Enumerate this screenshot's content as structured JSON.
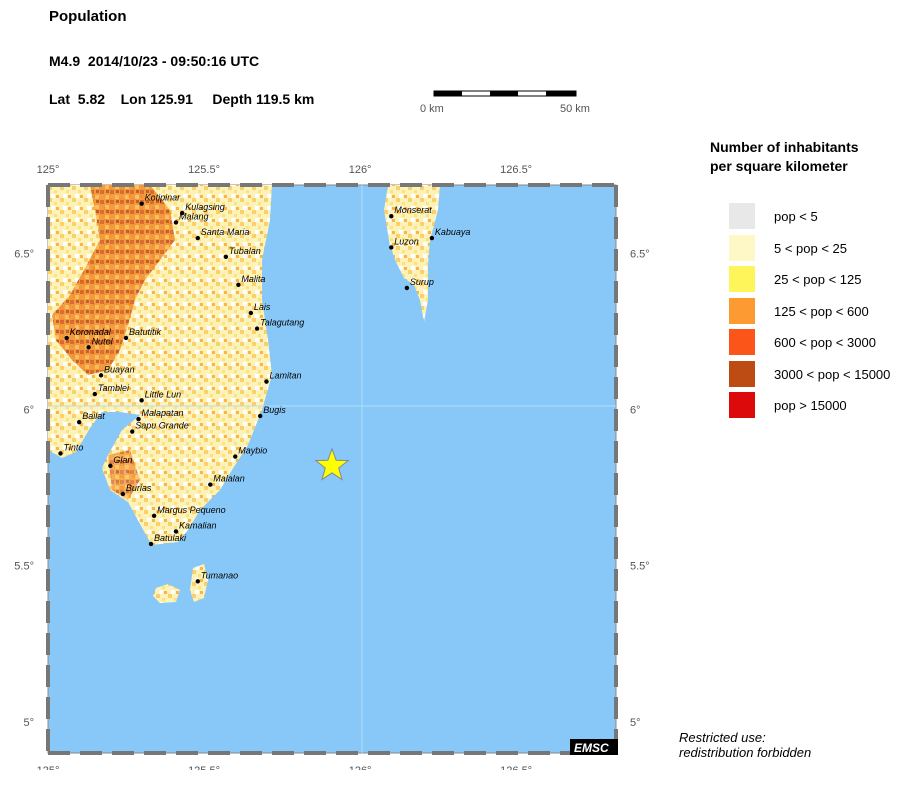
{
  "header": {
    "title": "Population",
    "event": "M4.9  2014/10/23 - 09:50:16 UTC",
    "coords": "Lat  5.82    Lon 125.91     Depth 119.5 km"
  },
  "scale": {
    "start_label": "0 km",
    "end_label": "50 km"
  },
  "map": {
    "axis_lon_labels": [
      "125°",
      "125.5°",
      "126°",
      "126.5°"
    ],
    "axis_lat_labels": [
      "6.5°",
      "6°",
      "5.5°",
      "5°"
    ],
    "lon_range": [
      125.0,
      126.82
    ],
    "lat_range": [
      4.9,
      6.72
    ],
    "epicenter": {
      "lon": 125.91,
      "lat": 5.82,
      "color": "#ffff00"
    },
    "sea_color": "#87c8f8",
    "land_color": "#fdf6c3",
    "places": [
      {
        "name": "Kotipinar",
        "lon": 125.3,
        "lat": 6.66
      },
      {
        "name": "Kulagsing",
        "lon": 125.43,
        "lat": 6.63
      },
      {
        "name": "Malang",
        "lon": 125.41,
        "lat": 6.6
      },
      {
        "name": "Santa Maria",
        "lon": 125.48,
        "lat": 6.55
      },
      {
        "name": "Tubalan",
        "lon": 125.57,
        "lat": 6.49
      },
      {
        "name": "Malita",
        "lon": 125.61,
        "lat": 6.4
      },
      {
        "name": "Lais",
        "lon": 125.65,
        "lat": 6.31
      },
      {
        "name": "Talagutang",
        "lon": 125.67,
        "lat": 6.26
      },
      {
        "name": "Koronadal",
        "lon": 125.06,
        "lat": 6.23
      },
      {
        "name": "Batutitik",
        "lon": 125.25,
        "lat": 6.23
      },
      {
        "name": "Nutol",
        "lon": 125.13,
        "lat": 6.2
      },
      {
        "name": "Buayan",
        "lon": 125.17,
        "lat": 6.11
      },
      {
        "name": "Tamblei",
        "lon": 125.15,
        "lat": 6.05
      },
      {
        "name": "Little Lun",
        "lon": 125.3,
        "lat": 6.03
      },
      {
        "name": "Lamitan",
        "lon": 125.7,
        "lat": 6.09
      },
      {
        "name": "Bailat",
        "lon": 125.1,
        "lat": 5.96
      },
      {
        "name": "Malapatan",
        "lon": 125.29,
        "lat": 5.97
      },
      {
        "name": "Bugis",
        "lon": 125.68,
        "lat": 5.98
      },
      {
        "name": "Sapu Grande",
        "lon": 125.27,
        "lat": 5.93
      },
      {
        "name": "Tinto",
        "lon": 125.04,
        "lat": 5.86
      },
      {
        "name": "Glan",
        "lon": 125.2,
        "lat": 5.82
      },
      {
        "name": "Maybio",
        "lon": 125.6,
        "lat": 5.85
      },
      {
        "name": "Malalan",
        "lon": 125.52,
        "lat": 5.76
      },
      {
        "name": "Burias",
        "lon": 125.24,
        "lat": 5.73
      },
      {
        "name": "Margus Pequeno",
        "lon": 125.34,
        "lat": 5.66
      },
      {
        "name": "Kamalian",
        "lon": 125.41,
        "lat": 5.61
      },
      {
        "name": "Batulaki",
        "lon": 125.33,
        "lat": 5.57
      },
      {
        "name": "Tumanao",
        "lon": 125.48,
        "lat": 5.45
      },
      {
        "name": "Monserat",
        "lon": 126.1,
        "lat": 6.62
      },
      {
        "name": "Kabuaya",
        "lon": 126.23,
        "lat": 6.55
      },
      {
        "name": "Luzon",
        "lon": 126.1,
        "lat": 6.52
      },
      {
        "name": "Surup",
        "lon": 126.15,
        "lat": 6.39
      }
    ],
    "watermark": "EMSC"
  },
  "legend": {
    "title_line1": "Number of inhabitants",
    "title_line2": "per square kilometer",
    "items": [
      {
        "label": "pop < 5",
        "color": "#e8e8e8"
      },
      {
        "label": "5 < pop < 25",
        "color": "#fdf8c6"
      },
      {
        "label": "25 < pop < 125",
        "color": "#fdf55a"
      },
      {
        "label": "125 < pop < 600",
        "color": "#fd9a32"
      },
      {
        "label": "600 < pop < 3000",
        "color": "#fc5519"
      },
      {
        "label": "3000 < pop < 15000",
        "color": "#bd4b14"
      },
      {
        "label": "pop > 15000",
        "color": "#dc0a0a"
      }
    ]
  },
  "footer": {
    "line1": "Restricted use:",
    "line2": "redistribution forbidden"
  }
}
